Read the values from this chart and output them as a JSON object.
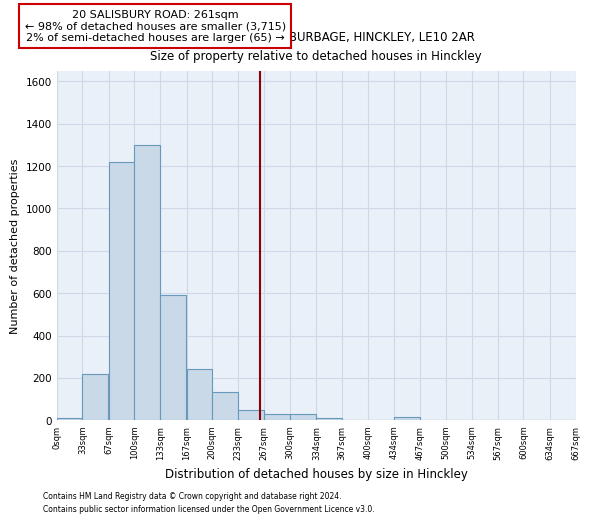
{
  "title1": "20, SALISBURY ROAD, BURBAGE, HINCKLEY, LE10 2AR",
  "title2": "Size of property relative to detached houses in Hinckley",
  "xlabel": "Distribution of detached houses by size in Hinckley",
  "ylabel": "Number of detached properties",
  "bin_edges": [
    0,
    33,
    67,
    100,
    133,
    167,
    200,
    233,
    267,
    300,
    334,
    367,
    400,
    434,
    467,
    500,
    534,
    567,
    600,
    634,
    667
  ],
  "bar_heights": [
    10,
    220,
    1220,
    1300,
    590,
    240,
    135,
    50,
    30,
    28,
    12,
    0,
    0,
    15,
    0,
    0,
    0,
    0,
    0,
    0
  ],
  "bar_color": "#c9d9e8",
  "bar_edge_color": "#6699bb",
  "grid_color": "#d0d8e8",
  "bg_color": "#eaf0f8",
  "vline_x": 261,
  "vline_color": "#8b0000",
  "annotation_line1": "20 SALISBURY ROAD: 261sqm",
  "annotation_line2": "← 98% of detached houses are smaller (3,715)",
  "annotation_line3": "2% of semi-detached houses are larger (65) →",
  "annotation_box_color": "#ffffff",
  "annotation_box_edge": "#cc0000",
  "ylim": [
    0,
    1650
  ],
  "yticks": [
    0,
    200,
    400,
    600,
    800,
    1000,
    1200,
    1400,
    1600
  ],
  "footnote1": "Contains HM Land Registry data © Crown copyright and database right 2024.",
  "footnote2": "Contains public sector information licensed under the Open Government Licence v3.0.",
  "tick_labels": [
    "0sqm",
    "33sqm",
    "67sqm",
    "100sqm",
    "133sqm",
    "167sqm",
    "200sqm",
    "233sqm",
    "267sqm",
    "300sqm",
    "334sqm",
    "367sqm",
    "400sqm",
    "434sqm",
    "467sqm",
    "500sqm",
    "534sqm",
    "567sqm",
    "600sqm",
    "634sqm",
    "667sqm"
  ]
}
